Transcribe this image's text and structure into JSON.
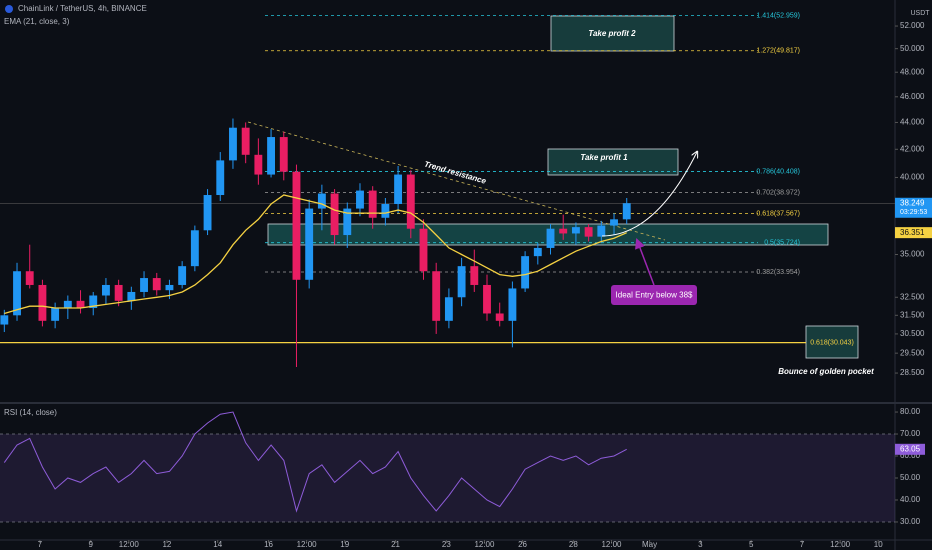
{
  "chart_data": [
    {
      "type": "candlestick",
      "title": "ChainLink / TetherUS, 4h, BINANCE",
      "axis_unit": "USDT",
      "log_scale": true,
      "xlim": [
        5.43,
        40.66
      ],
      "xticks": [
        7,
        9,
        {
          "value": 10.5,
          "label": "12:00"
        },
        12,
        14,
        16,
        {
          "value": 17.5,
          "label": "12:00"
        },
        19,
        21,
        23,
        {
          "value": 24.5,
          "label": "12:00"
        },
        26,
        28,
        {
          "value": 29.5,
          "label": "12:00"
        },
        {
          "value": 31,
          "label": "May"
        },
        {
          "value": 33,
          "label": "3"
        },
        {
          "value": 35,
          "label": "5"
        },
        {
          "value": 37,
          "label": "7"
        },
        {
          "value": 38.5,
          "label": "12:00"
        },
        {
          "value": 40,
          "label": "10"
        }
      ],
      "ylim": [
        27.2,
        54.4
      ],
      "yticks": [
        {
          "value": 52,
          "label": "52.000"
        },
        {
          "value": 50,
          "label": "50.000"
        },
        {
          "value": 48,
          "label": "48.000"
        },
        {
          "value": 46,
          "label": "46.000"
        },
        {
          "value": 44,
          "label": "44.000"
        },
        {
          "value": 42,
          "label": "42.000"
        },
        {
          "value": 40,
          "label": "40.000"
        },
        {
          "value": 35,
          "label": "35.000"
        },
        {
          "value": 32.5,
          "label": "32.500"
        },
        {
          "value": 31.5,
          "label": "31.500"
        },
        {
          "value": 30.5,
          "label": "30.500"
        },
        {
          "value": 29.5,
          "label": "29.500"
        },
        {
          "value": 28.5,
          "label": "28.500"
        }
      ],
      "up_color": "#2196f3",
      "down_color": "#e91e63",
      "x": [
        5.6,
        6.1,
        6.6,
        7.1,
        7.6,
        8.1,
        8.6,
        9.1,
        9.6,
        10.1,
        10.6,
        11.1,
        11.6,
        12.1,
        12.6,
        13.1,
        13.6,
        14.1,
        14.6,
        15.1,
        15.6,
        16.1,
        16.6,
        17.1,
        17.6,
        18.1,
        18.6,
        19.1,
        19.6,
        20.1,
        20.6,
        21.1,
        21.6,
        22.1,
        22.6,
        23.1,
        23.6,
        24.1,
        24.6,
        25.1,
        25.6,
        26.1,
        26.6,
        27.1,
        27.6,
        28.1,
        28.6,
        29.1,
        29.6,
        30.1
      ],
      "open": [
        31.0,
        31.5,
        34.0,
        33.2,
        31.2,
        31.9,
        32.3,
        31.9,
        32.6,
        33.2,
        32.3,
        32.8,
        33.6,
        32.9,
        33.2,
        34.3,
        36.5,
        38.8,
        41.2,
        43.6,
        41.6,
        40.2,
        42.9,
        40.4,
        33.5,
        37.9,
        38.9,
        36.2,
        37.9,
        39.1,
        37.3,
        38.2,
        40.2,
        36.6,
        34.0,
        31.2,
        32.5,
        34.3,
        33.2,
        31.6,
        31.2,
        33.0,
        34.9,
        35.4,
        36.6,
        36.3,
        36.7,
        36.1,
        36.8,
        37.2
      ],
      "high": [
        31.8,
        34.5,
        35.6,
        33.5,
        32.2,
        32.6,
        32.9,
        32.8,
        33.6,
        33.5,
        33.1,
        34.0,
        33.9,
        33.5,
        34.6,
        36.8,
        39.2,
        41.8,
        44.3,
        44.0,
        42.8,
        43.5,
        43.3,
        40.9,
        38.5,
        39.5,
        39.2,
        38.3,
        39.6,
        39.4,
        38.6,
        40.8,
        40.5,
        37.2,
        34.5,
        33.0,
        34.8,
        35.3,
        33.8,
        32.2,
        33.4,
        35.2,
        35.7,
        36.9,
        37.5,
        37.0,
        36.9,
        37.1,
        37.6,
        38.6
      ],
      "low": [
        30.6,
        31.2,
        33.0,
        30.9,
        30.8,
        31.3,
        31.6,
        31.5,
        32.1,
        32.0,
        31.8,
        32.5,
        32.6,
        32.4,
        33.0,
        34.0,
        36.2,
        38.4,
        40.6,
        41.0,
        39.5,
        40.0,
        39.8,
        28.8,
        33.0,
        36.5,
        35.6,
        35.4,
        37.4,
        36.6,
        36.8,
        37.6,
        36.0,
        33.5,
        30.5,
        30.8,
        32.0,
        32.8,
        31.2,
        30.9,
        29.8,
        32.8,
        34.4,
        35.0,
        35.9,
        35.6,
        35.8,
        35.7,
        36.2,
        36.9
      ],
      "close": [
        31.5,
        34.0,
        33.2,
        31.2,
        31.9,
        32.3,
        31.9,
        32.6,
        33.2,
        32.3,
        32.8,
        33.6,
        32.9,
        33.2,
        34.3,
        36.5,
        38.8,
        41.2,
        43.6,
        41.6,
        40.2,
        42.9,
        40.4,
        33.5,
        37.9,
        38.9,
        36.2,
        37.9,
        39.1,
        37.3,
        38.2,
        40.2,
        36.6,
        34.0,
        31.2,
        32.5,
        34.3,
        33.2,
        31.6,
        31.2,
        33.0,
        34.9,
        35.4,
        36.6,
        36.3,
        36.7,
        36.1,
        36.8,
        37.2,
        38.25
      ],
      "ema": {
        "name": "EMA (21, close, 3)",
        "color": "#f5d142",
        "values": [
          31.6,
          31.8,
          32.0,
          32.0,
          31.9,
          31.9,
          31.9,
          32.0,
          32.1,
          32.2,
          32.3,
          32.4,
          32.5,
          32.6,
          32.8,
          33.2,
          33.8,
          34.5,
          35.6,
          36.5,
          37.2,
          38.2,
          38.8,
          38.6,
          38.4,
          38.2,
          37.8,
          37.6,
          37.6,
          37.6,
          37.6,
          37.8,
          37.6,
          37.0,
          36.2,
          35.4,
          35.0,
          34.6,
          34.2,
          33.8,
          33.7,
          33.8,
          34.0,
          34.4,
          34.8,
          35.2,
          35.5,
          35.8,
          36.0,
          36.35
        ]
      },
      "levels": [
        {
          "label": "1.414(52.959)",
          "value": 52.959,
          "color": "#26c6da",
          "style": "dashed"
        },
        {
          "label": "1.272(49.817)",
          "value": 49.817,
          "color": "#f5d142",
          "style": "dashed"
        },
        {
          "label": "0.786(40.408)",
          "value": 40.408,
          "color": "#26c6da",
          "style": "dashed"
        },
        {
          "label": "0.702(38.972)",
          "value": 38.972,
          "color": "#9e9e9e",
          "style": "dashed"
        },
        {
          "label": "0.618(37.567)",
          "value": 37.567,
          "color": "#f5d142",
          "style": "dashed"
        },
        {
          "label": "0.5(35.724)",
          "value": 35.724,
          "color": "#26c6da",
          "style": "dashed"
        },
        {
          "label": "0.382(33.954)",
          "value": 33.954,
          "color": "#9e9e9e",
          "style": "dashed"
        },
        {
          "label": "0.618(30.043)",
          "value": 30.043,
          "color": "#f5d142",
          "style": "solid"
        }
      ],
      "price_labels": [
        {
          "value": 38.249,
          "label": "38.249",
          "sub": "03:29:53",
          "color": "#2196f3"
        },
        {
          "value": 36.351,
          "label": "36.351",
          "color": "#f5d142"
        }
      ],
      "annotations": {
        "tp2": "Take profit 2",
        "tp1": "Take profit 1",
        "trend": "Trend resistance",
        "entry": "Ideal Entry below 38$",
        "bounce": "Bounce of golden pocket"
      }
    },
    {
      "type": "line",
      "title": "RSI (14, close)",
      "xlim": [
        5.43,
        40.66
      ],
      "ylim": [
        21.8,
        83.2
      ],
      "yticks": [
        {
          "value": 80,
          "label": "80.00"
        },
        {
          "value": 70,
          "label": "70.00"
        },
        {
          "value": 60,
          "label": "60.00"
        },
        {
          "value": 50,
          "label": "50.00"
        },
        {
          "value": 40,
          "label": "40.00"
        },
        {
          "value": 30,
          "label": "30.00"
        }
      ],
      "band": [
        30,
        70
      ],
      "x": [
        5.6,
        6.1,
        6.6,
        7.1,
        7.6,
        8.1,
        8.6,
        9.1,
        9.6,
        10.1,
        10.6,
        11.1,
        11.6,
        12.1,
        12.6,
        13.1,
        13.6,
        14.1,
        14.6,
        15.1,
        15.6,
        16.1,
        16.6,
        17.1,
        17.6,
        18.1,
        18.6,
        19.1,
        19.6,
        20.1,
        20.6,
        21.1,
        21.6,
        22.1,
        22.6,
        23.1,
        23.6,
        24.1,
        24.6,
        25.1,
        25.6,
        26.1,
        26.6,
        27.1,
        27.6,
        28.1,
        28.6,
        29.1,
        29.6,
        30.1
      ],
      "series": [
        {
          "name": "RSI",
          "color": "#8e5cd9",
          "values": [
            57,
            65,
            68,
            55,
            45,
            50,
            48,
            52,
            55,
            48,
            52,
            58,
            52,
            53,
            60,
            70,
            75,
            79,
            80,
            66,
            58,
            65,
            58,
            35,
            52,
            56,
            48,
            53,
            58,
            52,
            55,
            62,
            50,
            42,
            35,
            42,
            50,
            45,
            40,
            37,
            45,
            54,
            57,
            60,
            58,
            60,
            56,
            59,
            60,
            63.05
          ]
        }
      ],
      "last_label": "63.05"
    }
  ]
}
